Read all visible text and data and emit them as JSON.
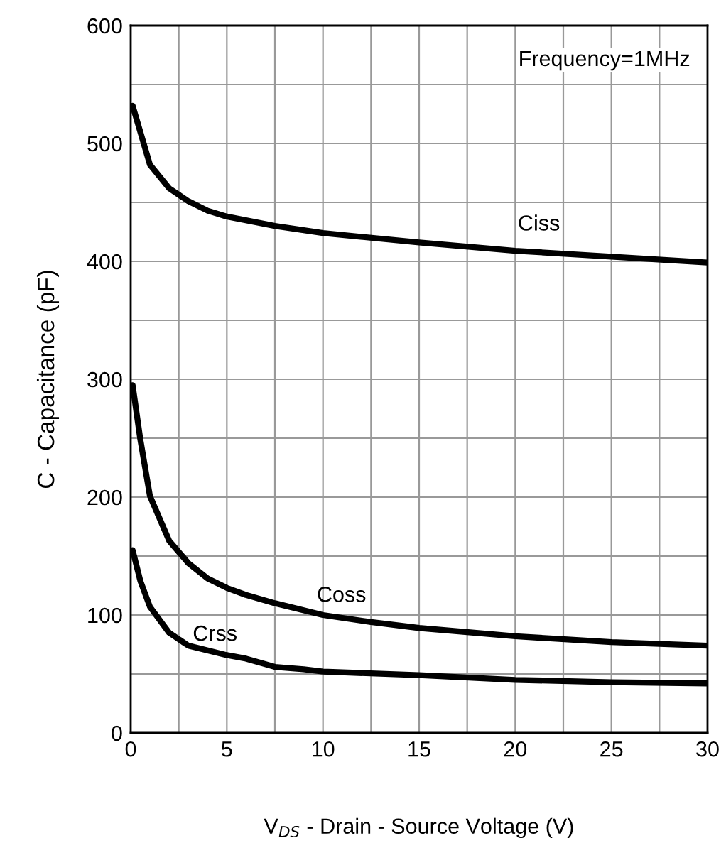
{
  "chart_data": {
    "type": "line",
    "xlabel": "V$_{DS}$ - Drain - Source Voltage (V)",
    "ylabel": "C - Capacitance (pF)",
    "annotations": [
      "Frequency=1MHz"
    ],
    "series": [
      {
        "name": "Ciss",
        "color": "#000000",
        "x": [
          0.1,
          1,
          2,
          3,
          4,
          5,
          7.5,
          10,
          15,
          20,
          25,
          30
        ],
        "values": [
          532,
          482,
          462,
          451,
          443,
          438,
          430,
          424,
          416,
          409,
          404,
          399
        ]
      },
      {
        "name": "Coss",
        "color": "#000000",
        "x": [
          0.1,
          0.5,
          1,
          2,
          3,
          4,
          5,
          6,
          7.5,
          10,
          12.5,
          15,
          20,
          25,
          30
        ],
        "values": [
          295,
          249,
          201,
          163,
          144,
          131,
          123,
          117,
          110,
          100,
          94,
          89,
          82,
          77,
          74
        ]
      },
      {
        "name": "Crss",
        "color": "#000000",
        "x": [
          0.1,
          0.5,
          1,
          2,
          3,
          5,
          6,
          7.5,
          9,
          10,
          15,
          20,
          25,
          30
        ],
        "values": [
          155,
          129,
          107,
          85,
          74,
          66,
          63,
          56,
          54,
          52,
          49,
          45,
          43,
          42
        ]
      }
    ],
    "xlim": [
      0,
      30
    ],
    "xticks": [
      0,
      {
        "value": 2.5,
        "label": null
      },
      5,
      {
        "value": 7.5,
        "label": null
      },
      10,
      {
        "value": 12.5,
        "label": null
      },
      15,
      {
        "value": 17.5,
        "label": null
      },
      20,
      {
        "value": 22.5,
        "label": null
      },
      25,
      {
        "value": 27.5,
        "label": null
      },
      30
    ],
    "ylim": [
      0,
      600
    ],
    "yticks": [
      0,
      {
        "value": 50,
        "label": null
      },
      100,
      {
        "value": 150,
        "label": null
      },
      200,
      {
        "value": 250,
        "label": null
      },
      300,
      {
        "value": 350,
        "label": null
      },
      400,
      {
        "value": 450,
        "label": null
      },
      500,
      {
        "value": 550,
        "label": null
      },
      600
    ],
    "grid": true,
    "legend": false,
    "marker": "none",
    "line_style": "solid"
  }
}
